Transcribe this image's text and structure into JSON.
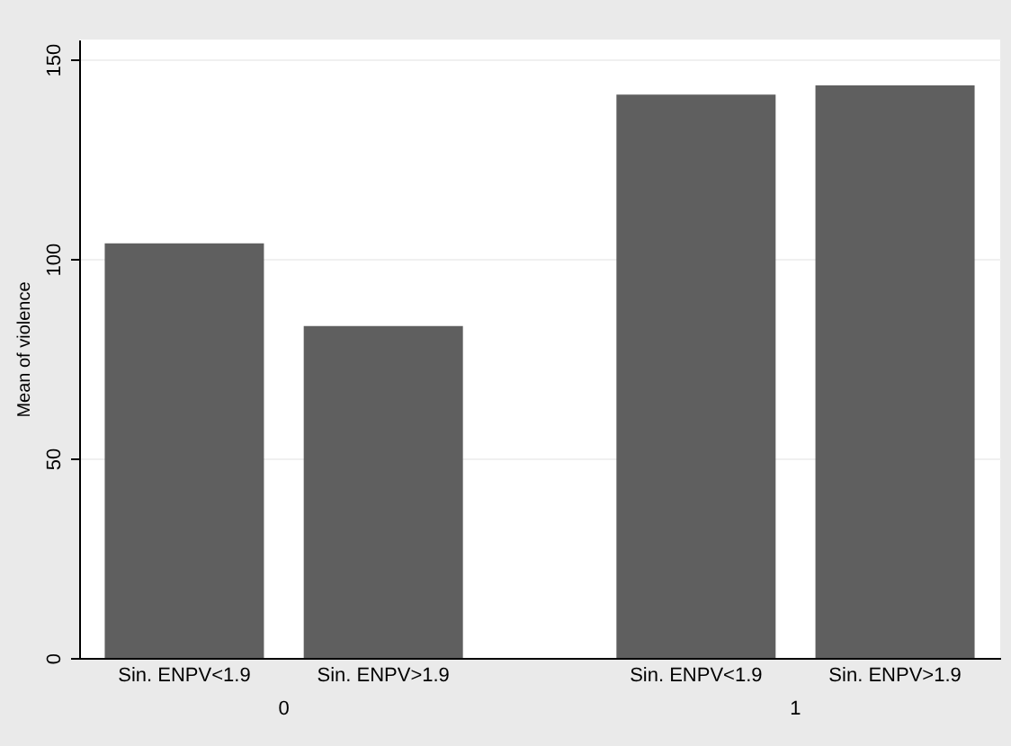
{
  "chart_data": {
    "type": "bar",
    "ylabel": "Mean of violence",
    "categories": [
      "0",
      "1"
    ],
    "series": [
      {
        "name": "Sin. ENPV<1.9",
        "color": "#5f5f5f",
        "values": [
          103.9,
          141.2
        ]
      },
      {
        "name": "Sin. ENPV>1.9",
        "color": "#5f5f5f",
        "values": [
          83.2,
          143.5
        ]
      }
    ],
    "ylim": [
      0,
      155
    ],
    "yticks": [
      0,
      50,
      100,
      150
    ],
    "grid": "y"
  }
}
